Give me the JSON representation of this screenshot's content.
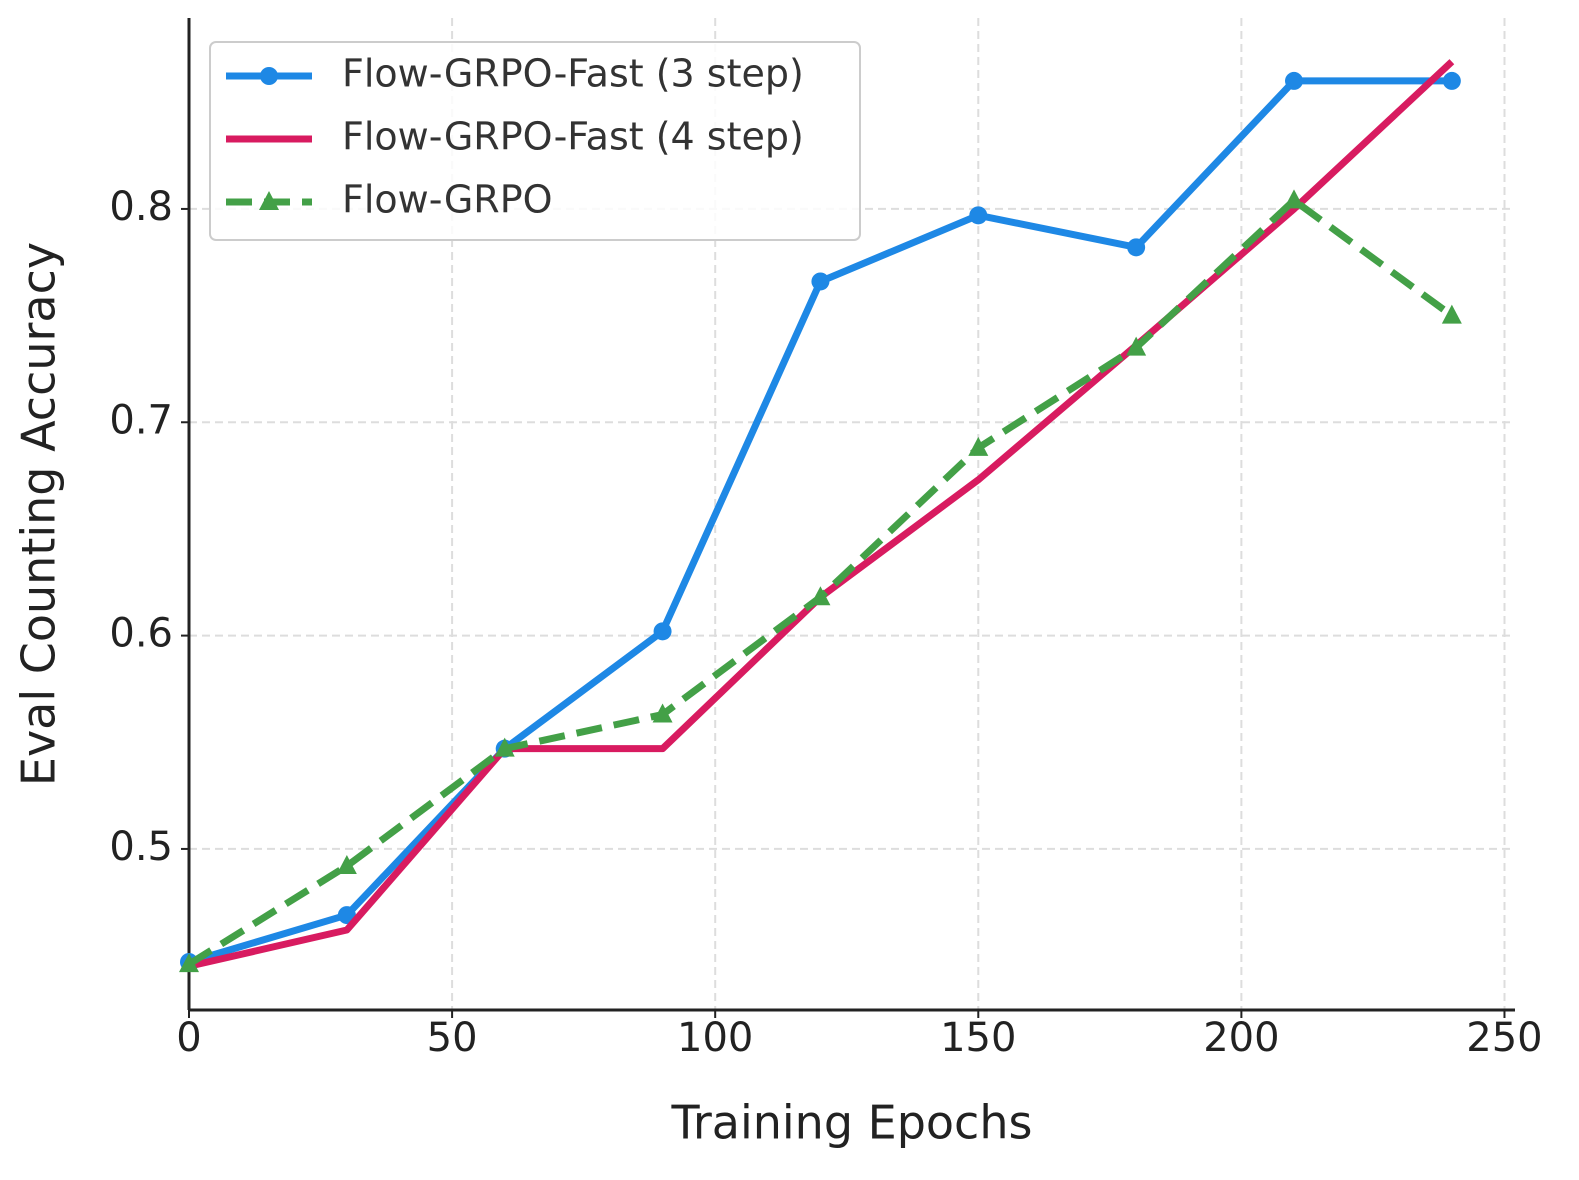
{
  "chart_data": {
    "type": "line",
    "x_label": "Training Epochs",
    "y_label": "Eval Counting Accuracy",
    "x": [
      0,
      30,
      60,
      90,
      120,
      150,
      180,
      210,
      240
    ],
    "series": [
      {
        "name": "Flow-GRPO-Fast (3 step)",
        "color": "#1e88e5",
        "linestyle": "solid",
        "marker": "circle",
        "values": [
          0.447,
          0.469,
          0.547,
          0.602,
          0.766,
          0.797,
          0.782,
          0.86,
          0.86
        ]
      },
      {
        "name": "Flow-GRPO-Fast (4 step)",
        "color": "#d81b60",
        "linestyle": "solid",
        "marker": "none",
        "values": [
          0.445,
          0.462,
          0.547,
          0.547,
          0.618,
          0.673,
          0.736,
          0.8,
          0.869
        ]
      },
      {
        "name": "Flow-GRPO",
        "color": "#43a047",
        "linestyle": "dashed",
        "marker": "triangle",
        "values": [
          0.446,
          0.492,
          0.547,
          0.563,
          0.618,
          0.688,
          0.735,
          0.804,
          0.75
        ]
      }
    ],
    "xlim": [
      0,
      252
    ],
    "ylim": [
      0.4245,
      0.8895
    ],
    "xticks": [
      0,
      50,
      100,
      150,
      200,
      250
    ],
    "yticks": [
      0.5,
      0.6,
      0.7,
      0.8
    ],
    "grid": true,
    "legend": "upper left"
  }
}
